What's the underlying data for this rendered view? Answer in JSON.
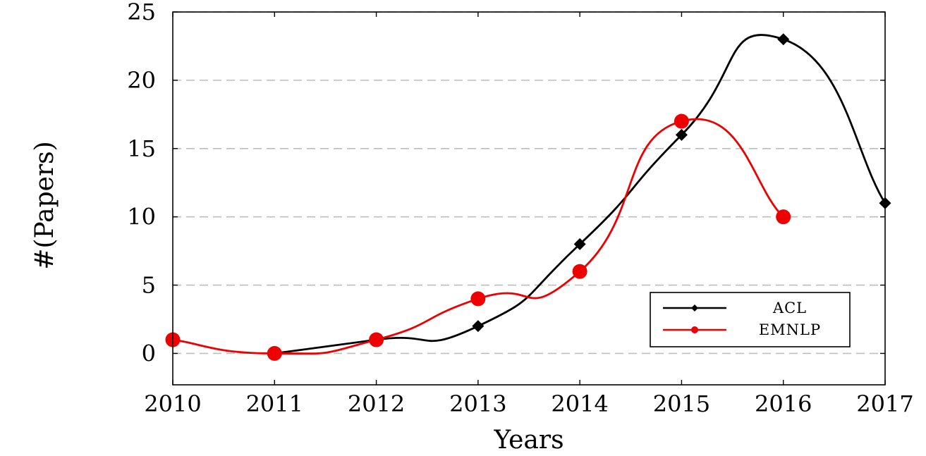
{
  "chart_data": {
    "type": "line",
    "title": "",
    "xlabel": "Years",
    "ylabel": "#(Papers)",
    "x": [
      2010,
      2011,
      2012,
      2013,
      2014,
      2015,
      2016,
      2017
    ],
    "xlim": [
      2010,
      2017
    ],
    "ylim": [
      -2.3,
      25
    ],
    "yticks": [
      0,
      5,
      10,
      15,
      20,
      25
    ],
    "grid": "horizontal dashed",
    "legend_position": "lower-right",
    "series": [
      {
        "name": "ACL",
        "color": "#000000",
        "marker": "diamond",
        "smooth": true,
        "points": [
          [
            2011,
            0
          ],
          [
            2012,
            1
          ],
          [
            2013,
            2
          ],
          [
            2014,
            8
          ],
          [
            2015,
            16
          ],
          [
            2016,
            23
          ],
          [
            2017,
            11
          ]
        ]
      },
      {
        "name": "EMNLP",
        "color": "#ee0000",
        "marker": "circle",
        "smooth": true,
        "points": [
          [
            2010,
            1
          ],
          [
            2011,
            0
          ],
          [
            2012,
            1
          ],
          [
            2013,
            4
          ],
          [
            2014,
            6
          ],
          [
            2015,
            17
          ],
          [
            2016,
            10
          ]
        ]
      }
    ]
  }
}
